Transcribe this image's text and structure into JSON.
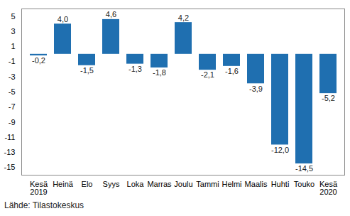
{
  "chart_data": {
    "type": "bar",
    "categories": [
      "Kesä\n2019",
      "Heinä",
      "Elo",
      "Syys",
      "Loka",
      "Marras",
      "Joulu",
      "Tammi",
      "Helmi",
      "Maalis",
      "Huhti",
      "Touko",
      "Kesä\n2020"
    ],
    "values": [
      -0.2,
      4.0,
      -1.5,
      4.6,
      -1.3,
      -1.8,
      4.2,
      -2.1,
      -1.6,
      -3.9,
      -12.0,
      -14.5,
      -5.2
    ],
    "value_labels": [
      "-0,2",
      "4,0",
      "-1,5",
      "4,6",
      "-1,3",
      "-1,8",
      "4,2",
      "-2,1",
      "-1,6",
      "-3,9",
      "-12,0",
      "-14,5",
      "-5,2"
    ],
    "color": "#1f6fb0",
    "ylim": [
      -16,
      6
    ],
    "yticks": [
      5,
      3,
      1,
      -1,
      -3,
      -5,
      -7,
      -9,
      -11,
      -13,
      -15
    ],
    "grid": false,
    "data_labels": true,
    "caption": "Lähde: Tilastokeskus"
  }
}
